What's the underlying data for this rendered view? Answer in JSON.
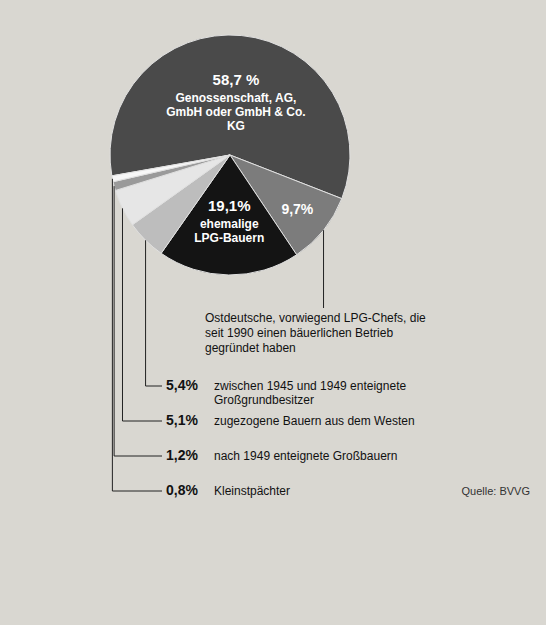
{
  "chart_data": {
    "type": "pie",
    "categories": [
      "Genossenschaft, AG, GmbH oder GmbH & Co. KG",
      "Ostdeutsche, vorwiegend LPG-Chefs, die seit 1990 einen bäuerlichen Betrieb gegründet haben",
      "ehemalige LPG-Bauern",
      "zwischen 1945 und 1949 enteignete Großgrundbesitzer",
      "zugezogene Bauern aus dem Westen",
      "nach 1949 enteignete Großbauern",
      "Kleinstpächter"
    ],
    "values": [
      58.7,
      9.7,
      19.1,
      5.4,
      5.1,
      1.2,
      0.8
    ],
    "value_labels": [
      "58,7 %",
      "9,7%",
      "19,1%",
      "5,4%",
      "5,1%",
      "1,2%",
      "0,8%"
    ],
    "colors": [
      "#4a4a4a",
      "#7c7c7c",
      "#141414",
      "#bdbdbd",
      "#e6e6e6",
      "#9a9a9a",
      "#f7f7f7"
    ],
    "data_labels": true,
    "source": "Quelle: BVVG"
  }
}
